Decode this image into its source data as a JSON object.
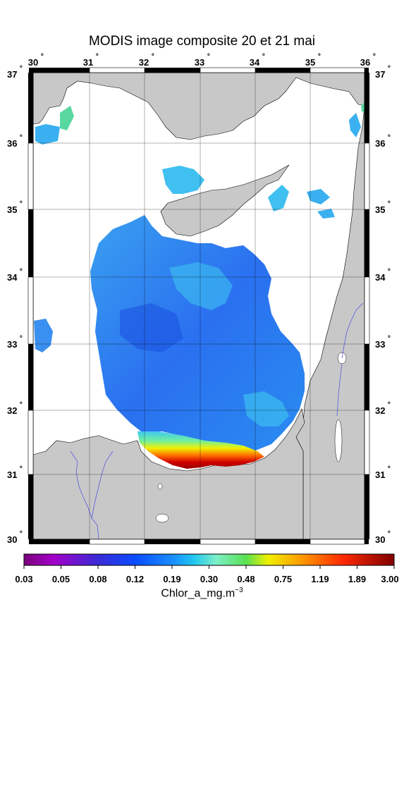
{
  "title": "MODIS image composite 20 et 21 mai",
  "longitude_labels": [
    "30",
    "31",
    "32",
    "33",
    "34",
    "35",
    "36"
  ],
  "latitude_labels": [
    "37",
    "36",
    "35",
    "34",
    "33",
    "32",
    "31",
    "30"
  ],
  "degree_mark": "˚",
  "colorbar": {
    "tick_labels": [
      "0.03",
      "0.05",
      "0.08",
      "0.12",
      "0.19",
      "0.30",
      "0.48",
      "0.75",
      "1.19",
      "1.89",
      "3.00"
    ],
    "units_main": "Chlor_a_mg.m",
    "units_exponent": "−3",
    "colors": [
      "#7a007a",
      "#a300c8",
      "#3a2bd6",
      "#0a4cff",
      "#1a8cff",
      "#22c8f0",
      "#7df0c8",
      "#58e050",
      "#f0f000",
      "#ff9a00",
      "#ff2a00",
      "#b00000"
    ]
  },
  "map_colors": {
    "land": "#c8c8c8",
    "cloud": "#ffffff",
    "river": "#5a5ae0",
    "water_deep": "#2a6ef0",
    "water_mid": "#3aa0f0",
    "water_light": "#40c8f0"
  }
}
